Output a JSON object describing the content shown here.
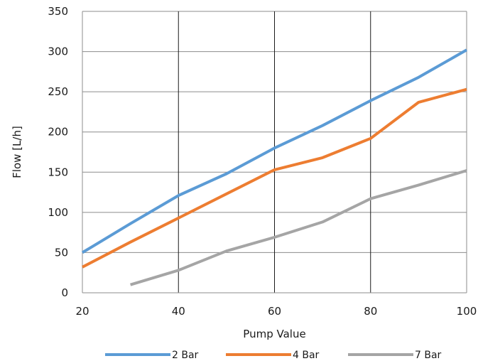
{
  "chart_data": {
    "type": "line",
    "title": "",
    "xlabel": "Pump Value",
    "ylabel": "Flow [L/h]",
    "xlim": [
      20,
      100
    ],
    "ylim": [
      0,
      350
    ],
    "x_ticks": [
      "20",
      "40",
      "60",
      "80",
      "100"
    ],
    "y_ticks": [
      "0",
      "50",
      "100",
      "150",
      "200",
      "250",
      "300",
      "350"
    ],
    "grid": "vertical major gridlines at x ticks, horizontal gridlines at y ticks",
    "legend_position": "bottom",
    "series": [
      {
        "name": "2 Bar",
        "color": "#5b9bd5",
        "points": [
          [
            20,
            50
          ],
          [
            30,
            86
          ],
          [
            40,
            121
          ],
          [
            50,
            148
          ],
          [
            60,
            180
          ],
          [
            70,
            208
          ],
          [
            80,
            239
          ],
          [
            90,
            268
          ],
          [
            100,
            302
          ]
        ]
      },
      {
        "name": "4 Bar",
        "color": "#ed7d31",
        "points": [
          [
            20,
            32
          ],
          [
            30,
            63
          ],
          [
            40,
            93
          ],
          [
            50,
            123
          ],
          [
            60,
            153
          ],
          [
            70,
            168
          ],
          [
            80,
            192
          ],
          [
            90,
            237
          ],
          [
            100,
            253
          ]
        ]
      },
      {
        "name": "7 Bar",
        "color": "#a5a5a5",
        "points": [
          [
            30,
            10
          ],
          [
            40,
            28
          ],
          [
            50,
            52
          ],
          [
            60,
            69
          ],
          [
            70,
            88
          ],
          [
            80,
            117
          ],
          [
            90,
            134
          ],
          [
            100,
            152
          ]
        ]
      }
    ]
  }
}
